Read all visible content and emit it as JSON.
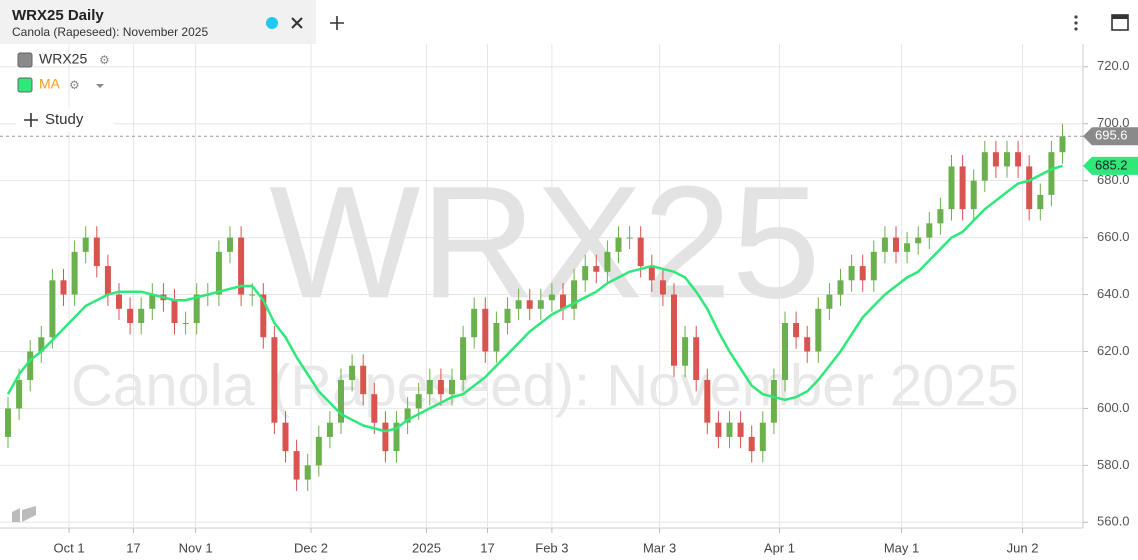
{
  "chart_data": {
    "type": "candlestick",
    "title": "WRX25 Daily",
    "subtitle": "Canola (Rapeseed): November 2025",
    "study_button": "Study",
    "up_color": "#6ab04c",
    "down_color": "#d9534f",
    "grid": true,
    "series": [
      {
        "name": "WRX25",
        "color": "#8a8a8a",
        "open": [
          590,
          600,
          610,
          620,
          625,
          645,
          640,
          655,
          660,
          650,
          640,
          635,
          630,
          635,
          640,
          638,
          630,
          630,
          640,
          640,
          655,
          660,
          640,
          640,
          625,
          595,
          585,
          575,
          580,
          590,
          595,
          610,
          615,
          605,
          595,
          585,
          595,
          600,
          605,
          610,
          605,
          610,
          625,
          635,
          620,
          630,
          635,
          638,
          635,
          638,
          640,
          635,
          645,
          650,
          648,
          655,
          660,
          660,
          650,
          645,
          640,
          615,
          625,
          610,
          595,
          590,
          595,
          590,
          585,
          595,
          610,
          630,
          625,
          620,
          635,
          640,
          645,
          650,
          645,
          655,
          660,
          655,
          658,
          660,
          665,
          670,
          685,
          670,
          680,
          690,
          685,
          690,
          685,
          670,
          675,
          690
        ],
        "high": [
          604,
          614,
          624,
          629,
          649,
          649,
          659,
          664,
          664,
          654,
          644,
          639,
          639,
          644,
          644,
          642,
          634,
          644,
          644,
          659,
          664,
          664,
          644,
          644,
          629,
          599,
          589,
          584,
          594,
          599,
          614,
          619,
          619,
          609,
          599,
          599,
          604,
          609,
          614,
          614,
          614,
          629,
          639,
          639,
          634,
          639,
          642,
          642,
          642,
          644,
          644,
          649,
          654,
          654,
          659,
          664,
          664,
          664,
          654,
          649,
          644,
          629,
          629,
          614,
          599,
          599,
          599,
          594,
          599,
          614,
          634,
          634,
          629,
          639,
          644,
          649,
          654,
          654,
          659,
          664,
          664,
          662,
          664,
          669,
          674,
          689,
          689,
          684,
          694,
          694,
          694,
          694,
          689,
          679,
          694,
          700
        ],
        "low": [
          586,
          596,
          606,
          616,
          621,
          636,
          636,
          651,
          646,
          636,
          631,
          626,
          626,
          631,
          634,
          626,
          626,
          626,
          636,
          636,
          651,
          636,
          636,
          621,
          591,
          581,
          571,
          571,
          576,
          586,
          591,
          606,
          601,
          591,
          581,
          581,
          591,
          596,
          601,
          601,
          601,
          606,
          621,
          616,
          616,
          626,
          631,
          631,
          631,
          634,
          631,
          631,
          641,
          644,
          644,
          651,
          656,
          646,
          641,
          636,
          611,
          611,
          606,
          591,
          586,
          586,
          586,
          581,
          581,
          591,
          606,
          621,
          616,
          616,
          631,
          636,
          641,
          641,
          641,
          651,
          651,
          651,
          654,
          656,
          661,
          666,
          666,
          666,
          676,
          681,
          681,
          681,
          666,
          666,
          671,
          686
        ],
        "close": [
          600,
          610,
          620,
          625,
          645,
          640,
          655,
          660,
          650,
          640,
          635,
          630,
          635,
          640,
          638,
          630,
          630,
          640,
          640,
          655,
          660,
          640,
          640,
          625,
          595,
          585,
          575,
          580,
          590,
          595,
          610,
          615,
          605,
          595,
          585,
          595,
          600,
          605,
          610,
          605,
          610,
          625,
          635,
          620,
          630,
          635,
          638,
          635,
          638,
          640,
          635,
          645,
          650,
          648,
          655,
          660,
          660,
          650,
          645,
          640,
          615,
          625,
          610,
          595,
          590,
          595,
          590,
          585,
          595,
          610,
          630,
          625,
          620,
          635,
          640,
          645,
          650,
          645,
          655,
          660,
          655,
          658,
          660,
          665,
          670,
          685,
          670,
          680,
          690,
          685,
          690,
          685,
          670,
          675,
          690,
          695.6
        ]
      },
      {
        "name": "MA",
        "color": "#2ee87a",
        "values": [
          605,
          612,
          617,
          620,
          624,
          628,
          632,
          636,
          638,
          640,
          641,
          641,
          641,
          640,
          639,
          638,
          638,
          639,
          640,
          641,
          642,
          643,
          643,
          638,
          630,
          625,
          618,
          612,
          606,
          602,
          598,
          596,
          594,
          593,
          592,
          593,
          596,
          598,
          600,
          602,
          604,
          605,
          608,
          611,
          615,
          619,
          623,
          627,
          630,
          633,
          635,
          637,
          639,
          641,
          644,
          646,
          648,
          649,
          650,
          649,
          648,
          646,
          641,
          635,
          627,
          620,
          614,
          608,
          605,
          604,
          603,
          604,
          606,
          610,
          615,
          620,
          626,
          632,
          636,
          640,
          643,
          646,
          648,
          652,
          656,
          660,
          662,
          666,
          670,
          673,
          676,
          679,
          680,
          682,
          684,
          685.2
        ]
      }
    ],
    "ylim": [
      558,
      728
    ],
    "yticks": [
      {
        "value": 560,
        "label": "560.0"
      },
      {
        "value": 580,
        "label": "580.0"
      },
      {
        "value": 600,
        "label": "600.0"
      },
      {
        "value": 620,
        "label": "620.0"
      },
      {
        "value": 640,
        "label": "640.0"
      },
      {
        "value": 660,
        "label": "660.0"
      },
      {
        "value": 680,
        "label": "680.0"
      },
      {
        "value": 700,
        "label": "700.0"
      },
      {
        "value": 720,
        "label": "720.0"
      }
    ],
    "xticks": [
      {
        "value": 5.5,
        "label": "Oct 1"
      },
      {
        "value": 11.3,
        "label": "17"
      },
      {
        "value": 16.9,
        "label": "Nov 1"
      },
      {
        "value": 27.3,
        "label": "Dec 2"
      },
      {
        "value": 37.7,
        "label": "2025"
      },
      {
        "value": 43.2,
        "label": "17"
      },
      {
        "value": 49,
        "label": "Feb 3"
      },
      {
        "value": 58.7,
        "label": "Mar 3"
      },
      {
        "value": 69.5,
        "label": "Apr 1"
      },
      {
        "value": 80.5,
        "label": "May 1"
      },
      {
        "value": 91.4,
        "label": "Jun 2"
      }
    ]
  }
}
